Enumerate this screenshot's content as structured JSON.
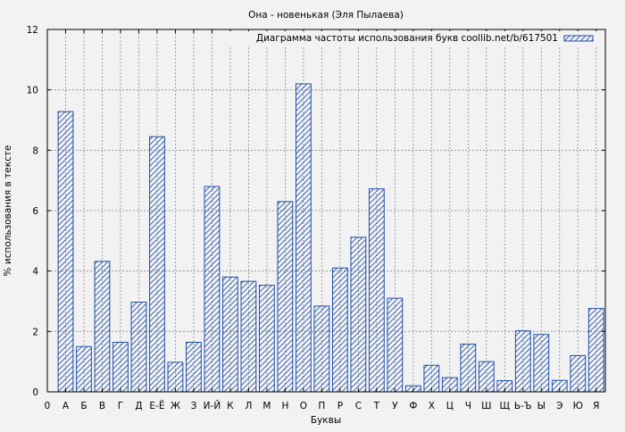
{
  "chart_data": {
    "type": "bar",
    "title": "Она - новенькая  (Эля Пылаева)",
    "xlabel": "Буквы",
    "ylabel": "% использования в тексте",
    "ylim": [
      0,
      12
    ],
    "yticks": [
      0,
      2,
      4,
      6,
      8,
      10,
      12
    ],
    "x_origin_label": "0",
    "grid": true,
    "legend_position": "top-right",
    "bar_color": "#1f4fa8",
    "background": "#f2f2f2",
    "categories": [
      "А",
      "Б",
      "В",
      "Г",
      "Д",
      "Е-Ё",
      "Ж",
      "З",
      "И-Й",
      "К",
      "Л",
      "М",
      "Н",
      "О",
      "П",
      "Р",
      "С",
      "Т",
      "У",
      "Ф",
      "Х",
      "Ц",
      "Ч",
      "Ш",
      "Щ",
      "Ь-Ъ",
      "Ы",
      "Э",
      "Ю",
      "Я"
    ],
    "series": [
      {
        "name": "Диаграмма частоты использования букв coollib.net/b/617501",
        "values": [
          9.28,
          1.5,
          4.32,
          1.64,
          2.97,
          8.45,
          0.98,
          1.64,
          6.8,
          3.8,
          3.66,
          3.53,
          6.3,
          10.2,
          2.84,
          4.1,
          5.12,
          6.72,
          3.1,
          0.2,
          0.88,
          0.47,
          1.58,
          1.0,
          0.37,
          2.02,
          1.9,
          0.38,
          1.2,
          2.76
        ]
      }
    ]
  }
}
